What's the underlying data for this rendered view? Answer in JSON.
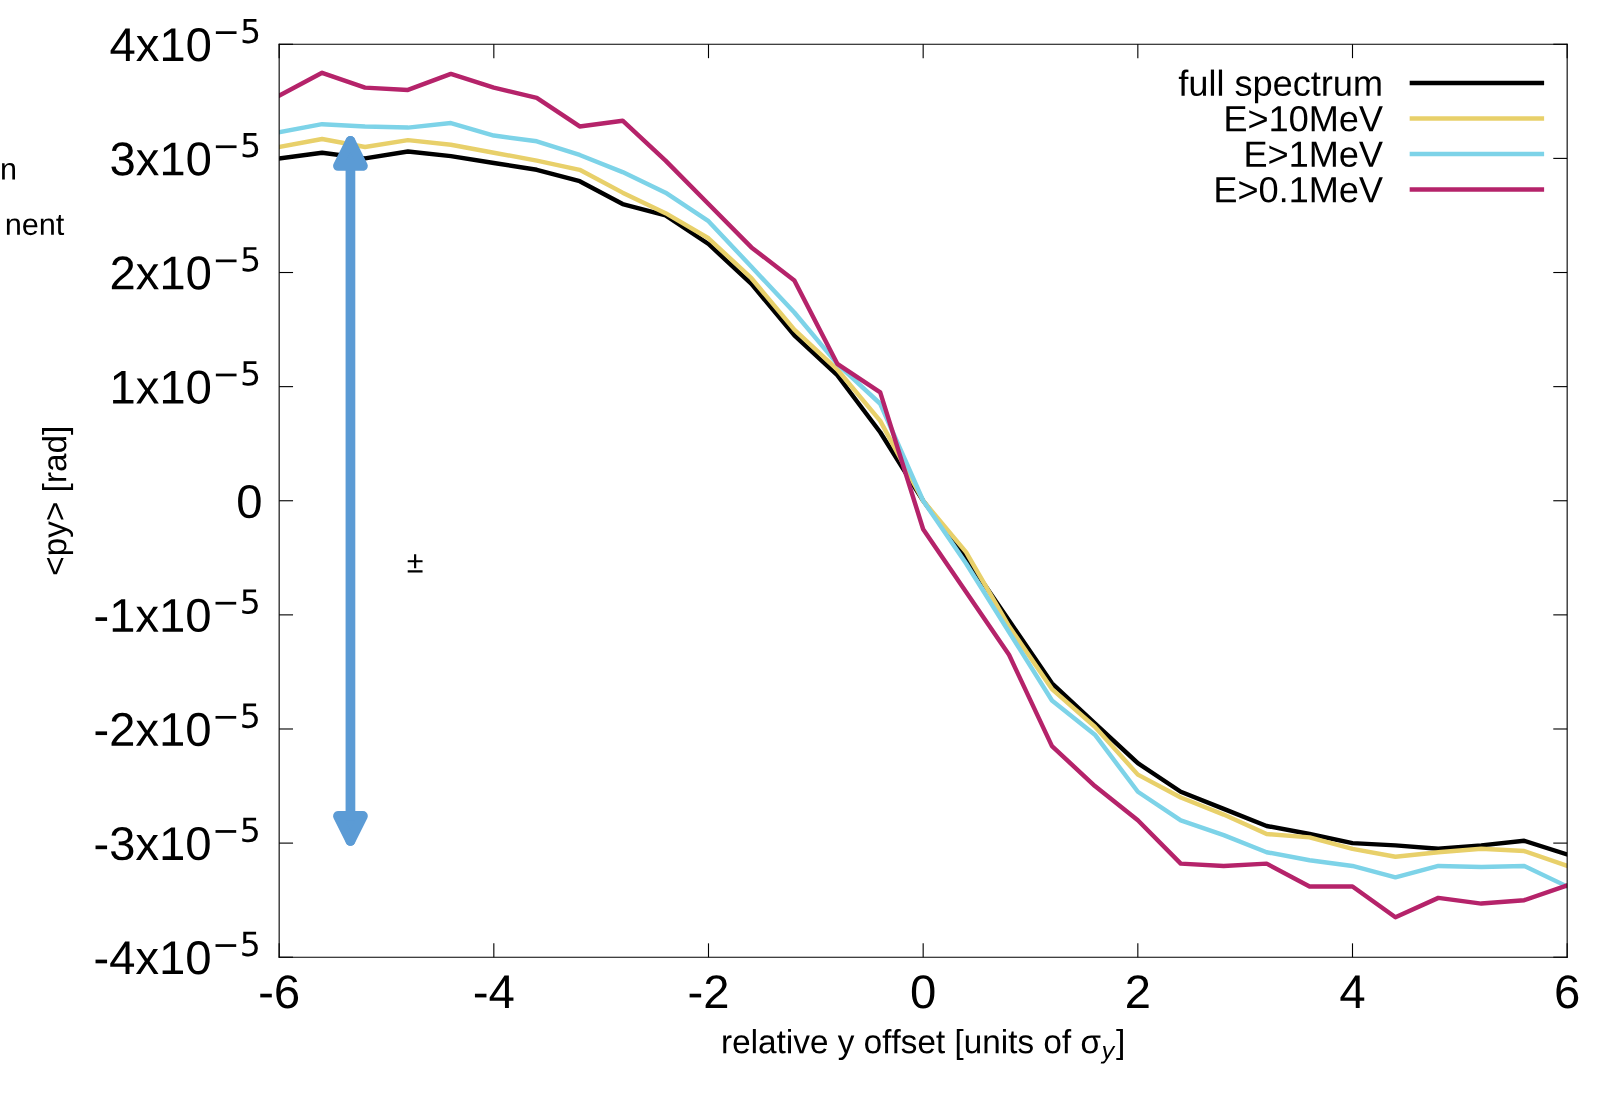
{
  "chart_data": {
    "type": "line",
    "xlabel": "relative y offset [units of σ$_{y}$]",
    "ylabel": "<py> [rad]",
    "x": [
      -6,
      -5.6,
      -5.2,
      -4.8,
      -4.4,
      -4.0,
      -3.6,
      -3.2,
      -2.8,
      -2.4,
      -2.0,
      -1.6,
      -1.2,
      -0.8,
      -0.4,
      0,
      0.4,
      0.8,
      1.2,
      1.6,
      2.0,
      2.4,
      2.8,
      3.2,
      3.6,
      4.0,
      4.4,
      4.8,
      5.2,
      5.6,
      6.0
    ],
    "series": [
      {
        "name": "full spectrum",
        "color": "#000000",
        "values": [
          3e-05,
          3.05e-05,
          3e-05,
          3.06e-05,
          3.02e-05,
          2.96e-05,
          2.9e-05,
          2.8e-05,
          2.6e-05,
          2.5e-05,
          2.25e-05,
          1.9e-05,
          1.45e-05,
          1.1e-05,
          6e-06,
          0.0,
          -5e-06,
          -1.05e-05,
          -1.6e-05,
          -1.95e-05,
          -2.3e-05,
          -2.55e-05,
          -2.7e-05,
          -2.85e-05,
          -2.92e-05,
          -3e-05,
          -3.02e-05,
          -3.05e-05,
          -3.02e-05,
          -2.98e-05,
          -3.1e-05
        ]
      },
      {
        "name": "E>10MeV",
        "color": "#e8d06a",
        "values": [
          3.1e-05,
          3.17e-05,
          3.1e-05,
          3.16e-05,
          3.12e-05,
          3.05e-05,
          2.98e-05,
          2.9e-05,
          2.7e-05,
          2.52e-05,
          2.3e-05,
          1.95e-05,
          1.5e-05,
          1.15e-05,
          7e-06,
          0.0,
          -4.5e-06,
          -1.1e-05,
          -1.65e-05,
          -1.98e-05,
          -2.4e-05,
          -2.6e-05,
          -2.75e-05,
          -2.92e-05,
          -2.95e-05,
          -3.05e-05,
          -3.12e-05,
          -3.08e-05,
          -3.05e-05,
          -3.07e-05,
          -3.2e-05
        ]
      },
      {
        "name": "E>1MeV",
        "color": "#7dd3e8",
        "values": [
          3.23e-05,
          3.3e-05,
          3.28e-05,
          3.27e-05,
          3.31e-05,
          3.2e-05,
          3.15e-05,
          3.03e-05,
          2.88e-05,
          2.7e-05,
          2.45e-05,
          2.05e-05,
          1.65e-05,
          1.2e-05,
          8.5e-06,
          0.0,
          -5.5e-06,
          -1.15e-05,
          -1.75e-05,
          -2.05e-05,
          -2.55e-05,
          -2.8e-05,
          -2.93e-05,
          -3.08e-05,
          -3.15e-05,
          -3.2e-05,
          -3.3e-05,
          -3.2e-05,
          -3.21e-05,
          -3.2e-05,
          -3.38e-05
        ]
      },
      {
        "name": "E>0.1MeV",
        "color": "#b5236a",
        "values": [
          3.55e-05,
          3.75e-05,
          3.62e-05,
          3.6e-05,
          3.74e-05,
          3.62e-05,
          3.53e-05,
          3.28e-05,
          3.33e-05,
          2.98e-05,
          2.6e-05,
          2.22e-05,
          1.93e-05,
          1.2e-05,
          9.5e-06,
          -2.5e-06,
          -8e-06,
          -1.35e-05,
          -2.15e-05,
          -2.5e-05,
          -2.8e-05,
          -3.18e-05,
          -3.2e-05,
          -3.18e-05,
          -3.38e-05,
          -3.38e-05,
          -3.65e-05,
          -3.48e-05,
          -3.53e-05,
          -3.5e-05,
          -3.37e-05
        ]
      }
    ],
    "xlim": [
      -6,
      6
    ],
    "xticks": [
      -6,
      -4,
      -2,
      0,
      2,
      4,
      6
    ],
    "ylim": [
      -4e-05,
      4e-05
    ],
    "yticks": [
      {
        "value": -4e-05,
        "label": "-4x10$^{−5}$"
      },
      {
        "value": -3e-05,
        "label": "-3x10$^{−5}$"
      },
      {
        "value": -2e-05,
        "label": "-2x10$^{−5}$"
      },
      {
        "value": -1e-05,
        "label": "-1x10$^{−5}$"
      },
      0,
      {
        "value": 1e-05,
        "label": "1x10$^{−5}$"
      },
      {
        "value": 2e-05,
        "label": "2x10$^{−5}$"
      },
      {
        "value": 3e-05,
        "label": "3x10$^{−5}$"
      },
      {
        "value": 4e-05,
        "label": "4x10$^{−5}$"
      }
    ],
    "annotations": [
      "n",
      "nent",
      "±"
    ],
    "legend": "top right",
    "grid": false,
    "marker": "none",
    "line_style": "solid"
  }
}
